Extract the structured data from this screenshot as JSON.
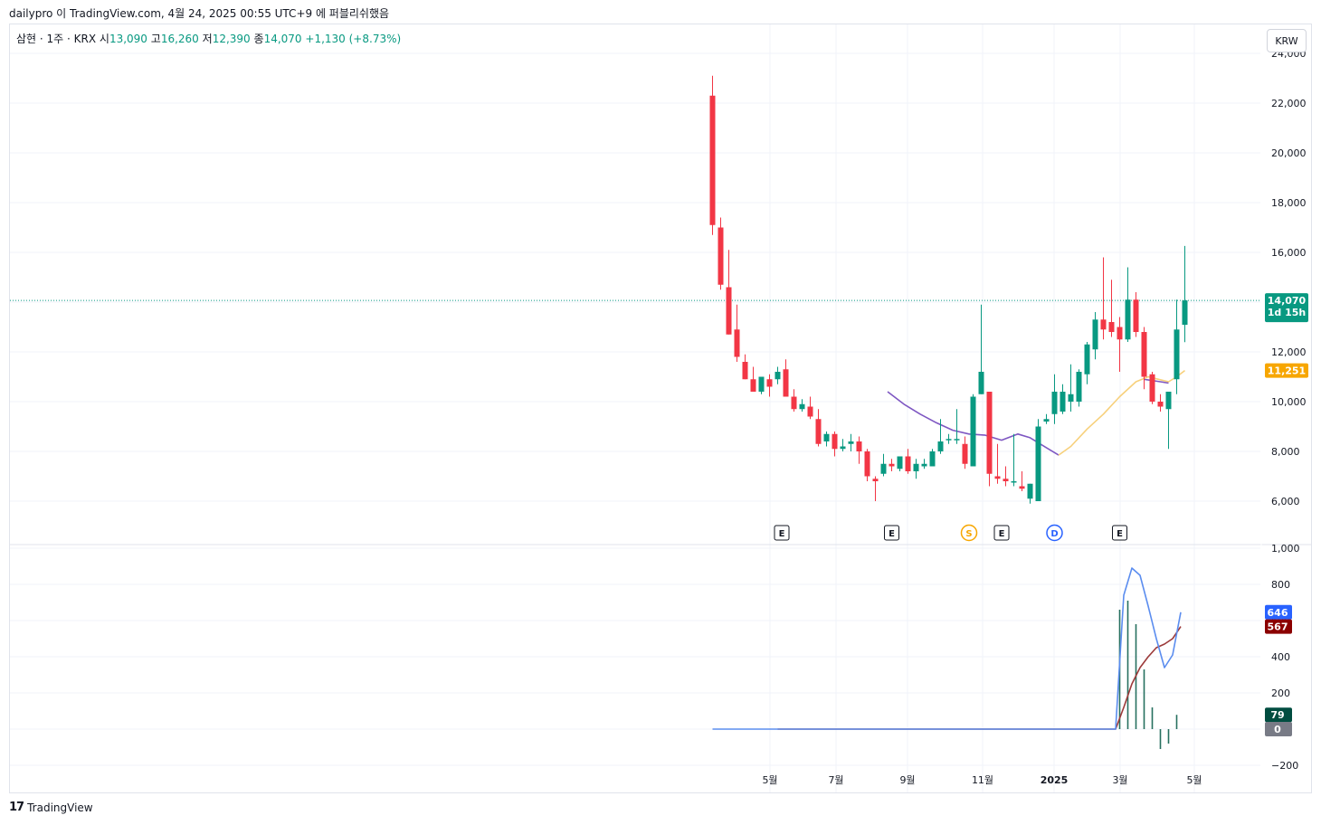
{
  "header": {
    "attribution": "dailypro 이 TradingView.com, 4월 24, 2025 00:55 UTC+9 에 퍼블리쉬했음"
  },
  "legend": {
    "symbol": "삼현 · 1주 · KRX",
    "open_label": "시",
    "open": "13,090",
    "high_label": "고",
    "high": "16,260",
    "low_label": "저",
    "low": "12,390",
    "close_label": "종",
    "close": "14,070",
    "change": "+1,130 (+8.73%)"
  },
  "currency_button": "KRW",
  "footer": {
    "logo": "17",
    "brand": "TradingView"
  },
  "colors": {
    "up": "#089981",
    "down": "#f23645",
    "ma_purple": "#7e57c2",
    "ma_yellow": "#f7d07b",
    "osc_blue": "#5b8def",
    "osc_red": "#9c3a3a",
    "grid": "#f0f3fa"
  },
  "chart_data": [
    {
      "type": "candlestick",
      "x_ticks": [
        "5월",
        "7월",
        "9월",
        "11월",
        "2025",
        "3월",
        "5월"
      ],
      "y_ticks": [
        "6,000",
        "8,000",
        "10,000",
        "12,000",
        "14,000",
        "16,000",
        "18,000",
        "20,000",
        "22,000",
        "24,000"
      ],
      "ylim": [
        5000,
        24000
      ],
      "price_line": {
        "label": "14,070",
        "countdown": "1d 15h",
        "value": 14070
      },
      "ma_label": {
        "label": "11,251",
        "value": 11251
      },
      "candles": [
        {
          "o": 22300,
          "h": 23100,
          "l": 16700,
          "c": 17100
        },
        {
          "o": 17000,
          "h": 17400,
          "l": 14500,
          "c": 14700
        },
        {
          "o": 14600,
          "h": 16100,
          "l": 12700,
          "c": 12700
        },
        {
          "o": 12900,
          "h": 13900,
          "l": 11600,
          "c": 11800
        },
        {
          "o": 11600,
          "h": 11900,
          "l": 10900,
          "c": 10900
        },
        {
          "o": 10900,
          "h": 11400,
          "l": 10400,
          "c": 10400
        },
        {
          "o": 10400,
          "h": 11000,
          "l": 10300,
          "c": 11000
        },
        {
          "o": 10900,
          "h": 11100,
          "l": 10200,
          "c": 10600
        },
        {
          "o": 10900,
          "h": 11400,
          "l": 10700,
          "c": 11200
        },
        {
          "o": 11300,
          "h": 11700,
          "l": 10200,
          "c": 10200
        },
        {
          "o": 10200,
          "h": 10500,
          "l": 9600,
          "c": 9700
        },
        {
          "o": 9700,
          "h": 10100,
          "l": 9600,
          "c": 9900
        },
        {
          "o": 9800,
          "h": 10200,
          "l": 9300,
          "c": 9400
        },
        {
          "o": 9300,
          "h": 9700,
          "l": 8200,
          "c": 8300
        },
        {
          "o": 8400,
          "h": 8800,
          "l": 8200,
          "c": 8700
        },
        {
          "o": 8700,
          "h": 8800,
          "l": 7800,
          "c": 8100
        },
        {
          "o": 8100,
          "h": 8500,
          "l": 8000,
          "c": 8200
        },
        {
          "o": 8300,
          "h": 8700,
          "l": 8000,
          "c": 8400
        },
        {
          "o": 8400,
          "h": 8600,
          "l": 7500,
          "c": 8000
        },
        {
          "o": 8000,
          "h": 8100,
          "l": 6800,
          "c": 7000
        },
        {
          "o": 6900,
          "h": 7000,
          "l": 6000,
          "c": 6800
        },
        {
          "o": 7100,
          "h": 7900,
          "l": 7000,
          "c": 7500
        },
        {
          "o": 7500,
          "h": 7700,
          "l": 7200,
          "c": 7400
        },
        {
          "o": 7300,
          "h": 7800,
          "l": 7200,
          "c": 7800
        },
        {
          "o": 7800,
          "h": 8100,
          "l": 7100,
          "c": 7200
        },
        {
          "o": 7200,
          "h": 7700,
          "l": 6900,
          "c": 7500
        },
        {
          "o": 7400,
          "h": 7700,
          "l": 7300,
          "c": 7500
        },
        {
          "o": 7400,
          "h": 8100,
          "l": 7400,
          "c": 8000
        },
        {
          "o": 8000,
          "h": 9300,
          "l": 7900,
          "c": 8400
        },
        {
          "o": 8500,
          "h": 8700,
          "l": 8300,
          "c": 8500
        },
        {
          "o": 8500,
          "h": 9700,
          "l": 8300,
          "c": 8500
        },
        {
          "o": 8300,
          "h": 8600,
          "l": 7300,
          "c": 7500
        },
        {
          "o": 7400,
          "h": 10300,
          "l": 7400,
          "c": 10200
        },
        {
          "o": 10300,
          "h": 13900,
          "l": 10300,
          "c": 11200
        },
        {
          "o": 10400,
          "h": 10400,
          "l": 6600,
          "c": 7100
        },
        {
          "o": 7000,
          "h": 8300,
          "l": 6700,
          "c": 6900
        },
        {
          "o": 6900,
          "h": 7400,
          "l": 6600,
          "c": 6800
        },
        {
          "o": 6800,
          "h": 8700,
          "l": 6600,
          "c": 6800
        },
        {
          "o": 6600,
          "h": 7200,
          "l": 6400,
          "c": 6500
        },
        {
          "o": 6100,
          "h": 6700,
          "l": 5900,
          "c": 6700
        },
        {
          "o": 6000,
          "h": 9300,
          "l": 6000,
          "c": 9000
        },
        {
          "o": 9200,
          "h": 9500,
          "l": 9100,
          "c": 9300
        },
        {
          "o": 9500,
          "h": 11100,
          "l": 9100,
          "c": 10400
        },
        {
          "o": 9600,
          "h": 10700,
          "l": 9500,
          "c": 10400
        },
        {
          "o": 10000,
          "h": 11500,
          "l": 9600,
          "c": 10300
        },
        {
          "o": 10000,
          "h": 11300,
          "l": 9800,
          "c": 11200
        },
        {
          "o": 11100,
          "h": 12400,
          "l": 10700,
          "c": 12300
        },
        {
          "o": 12100,
          "h": 13600,
          "l": 11700,
          "c": 13300
        },
        {
          "o": 13300,
          "h": 15800,
          "l": 12500,
          "c": 12900
        },
        {
          "o": 13200,
          "h": 14900,
          "l": 12600,
          "c": 12800
        },
        {
          "o": 13000,
          "h": 13400,
          "l": 11200,
          "c": 12500
        },
        {
          "o": 12500,
          "h": 15400,
          "l": 12400,
          "c": 14100
        },
        {
          "o": 14100,
          "h": 14400,
          "l": 12600,
          "c": 12800
        },
        {
          "o": 12800,
          "h": 13000,
          "l": 10500,
          "c": 11000
        },
        {
          "o": 11100,
          "h": 11200,
          "l": 9900,
          "c": 10000
        },
        {
          "o": 10000,
          "h": 10300,
          "l": 9600,
          "c": 9800
        },
        {
          "o": 9700,
          "h": 10400,
          "l": 8100,
          "c": 10400
        },
        {
          "o": 10900,
          "h": 14100,
          "l": 10300,
          "c": 12900
        },
        {
          "o": 13090,
          "h": 16260,
          "l": 12390,
          "c": 14070
        }
      ],
      "ma_purple": [
        {
          "i": 21.5,
          "v": 10400
        },
        {
          "i": 23.5,
          "v": 9900
        },
        {
          "i": 25.5,
          "v": 9500
        },
        {
          "i": 27.5,
          "v": 9150
        },
        {
          "i": 29.5,
          "v": 8850
        },
        {
          "i": 31.5,
          "v": 8700
        },
        {
          "i": 33.5,
          "v": 8650
        },
        {
          "i": 35.5,
          "v": 8450
        },
        {
          "i": 37.5,
          "v": 8700
        },
        {
          "i": 39.0,
          "v": 8550
        },
        {
          "i": 41.0,
          "v": 8150
        },
        {
          "i": 42.5,
          "v": 7850
        }
      ],
      "ma_purple_tail": [
        {
          "i": 53.0,
          "v": 10900
        },
        {
          "i": 55.0,
          "v": 10800
        },
        {
          "i": 56.0,
          "v": 10750
        }
      ],
      "ma_yellow": [
        {
          "i": 42.5,
          "v": 7850
        },
        {
          "i": 44.0,
          "v": 8200
        },
        {
          "i": 46.0,
          "v": 8900
        },
        {
          "i": 48.0,
          "v": 9500
        },
        {
          "i": 50.0,
          "v": 10200
        },
        {
          "i": 52.0,
          "v": 10800
        },
        {
          "i": 53.5,
          "v": 11000
        },
        {
          "i": 56.0,
          "v": 10800
        },
        {
          "i": 57.0,
          "v": 11000
        },
        {
          "i": 58.0,
          "v": 11251
        }
      ],
      "events": [
        {
          "label": "E",
          "i": 8.5,
          "style": "box"
        },
        {
          "label": "E",
          "i": 22.0,
          "style": "box"
        },
        {
          "label": "S",
          "i": 31.5,
          "style": "circle-orange"
        },
        {
          "label": "E",
          "i": 35.5,
          "style": "box"
        },
        {
          "label": "D",
          "i": 42.0,
          "style": "circle-blue"
        },
        {
          "label": "E",
          "i": 50.0,
          "style": "box"
        }
      ]
    },
    {
      "type": "oscillator",
      "y_ticks": [
        "-200",
        "0",
        "200",
        "400",
        "600",
        "800",
        "1,000"
      ],
      "ylim": [
        -200,
        1000
      ],
      "tags": [
        {
          "label": "646",
          "value": 646,
          "color": "#2962ff"
        },
        {
          "label": "567",
          "value": 567,
          "color": "#8b0000"
        },
        {
          "label": "79",
          "value": 79,
          "color": "#004d40"
        },
        {
          "label": "0",
          "value": 0,
          "color": "#787b86"
        }
      ],
      "line_blue": [
        {
          "i": 0,
          "v": 0
        },
        {
          "i": 49.5,
          "v": 0
        },
        {
          "i": 50.5,
          "v": 740
        },
        {
          "i": 51.5,
          "v": 890
        },
        {
          "i": 52.5,
          "v": 850
        },
        {
          "i": 53.5,
          "v": 680
        },
        {
          "i": 54.5,
          "v": 500
        },
        {
          "i": 55.5,
          "v": 340
        },
        {
          "i": 56.5,
          "v": 410
        },
        {
          "i": 57.5,
          "v": 646
        }
      ],
      "line_red": [
        {
          "i": 8,
          "v": 0
        },
        {
          "i": 49.5,
          "v": 0
        },
        {
          "i": 50.5,
          "v": 120
        },
        {
          "i": 51.5,
          "v": 250
        },
        {
          "i": 52.5,
          "v": 340
        },
        {
          "i": 53.5,
          "v": 400
        },
        {
          "i": 54.5,
          "v": 450
        },
        {
          "i": 55.5,
          "v": 470
        },
        {
          "i": 56.5,
          "v": 500
        },
        {
          "i": 57.5,
          "v": 567
        }
      ],
      "histogram": [
        {
          "i": 50.0,
          "v": 660
        },
        {
          "i": 51.0,
          "v": 710
        },
        {
          "i": 52.0,
          "v": 580
        },
        {
          "i": 53.0,
          "v": 330
        },
        {
          "i": 54.0,
          "v": 120
        },
        {
          "i": 55.0,
          "v": -110
        },
        {
          "i": 56.0,
          "v": -80
        },
        {
          "i": 57.0,
          "v": 79
        }
      ]
    }
  ]
}
